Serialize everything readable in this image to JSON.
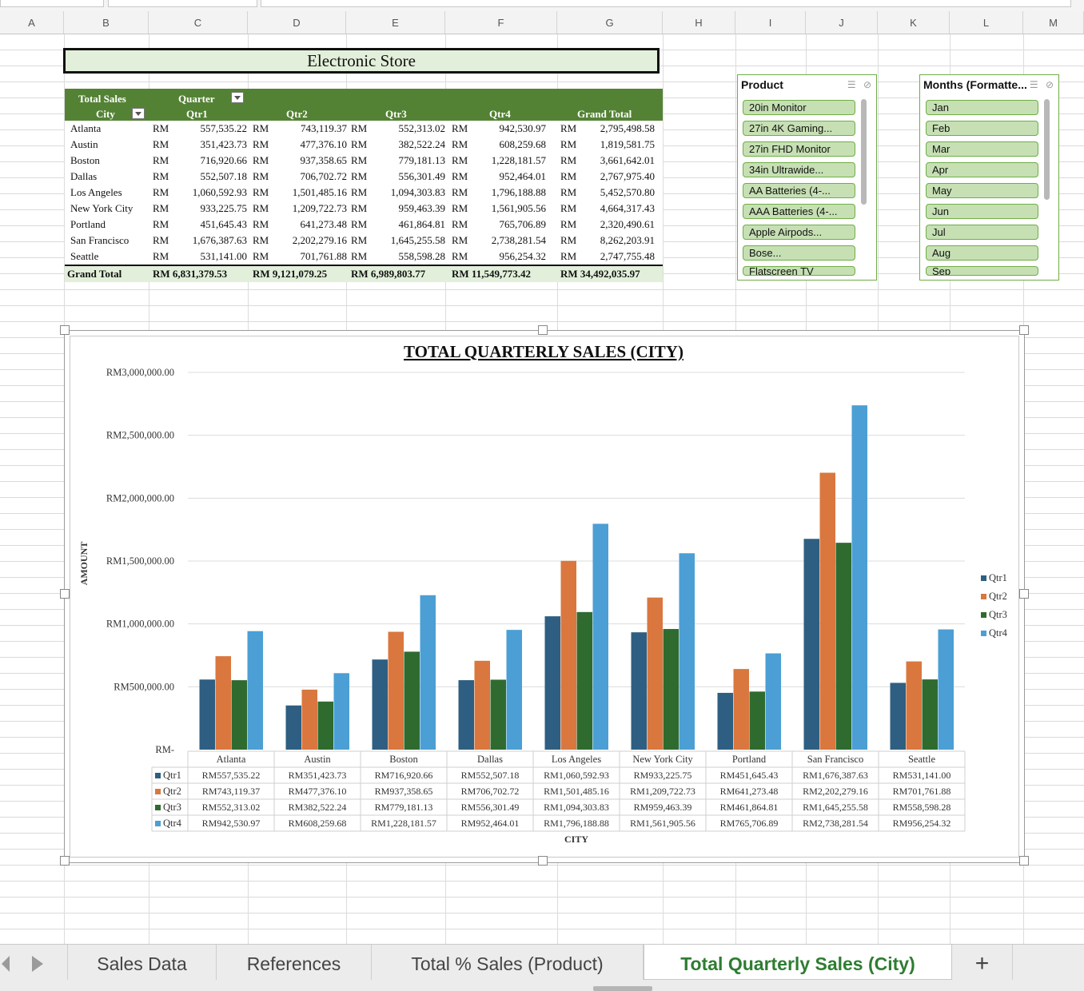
{
  "columns": [
    "A",
    "B",
    "C",
    "D",
    "E",
    "F",
    "G",
    "H",
    "I",
    "J",
    "K",
    "L",
    "M"
  ],
  "store_title": "Electronic Store",
  "pivot": {
    "header_total_sales": "Total Sales",
    "header_quarter": "Quarter",
    "header_city": "City",
    "quarters": [
      "Qtr1",
      "Qtr2",
      "Qtr3",
      "Qtr4"
    ],
    "grand_total_label": "Grand Total",
    "rows": [
      {
        "city": "Atlanta",
        "q1": "557,535.22",
        "q2": "743,119.37",
        "q3": "552,313.02",
        "q4": "942,530.97",
        "total": "2,795,498.58"
      },
      {
        "city": "Austin",
        "q1": "351,423.73",
        "q2": "477,376.10",
        "q3": "382,522.24",
        "q4": "608,259.68",
        "total": "1,819,581.75"
      },
      {
        "city": "Boston",
        "q1": "716,920.66",
        "q2": "937,358.65",
        "q3": "779,181.13",
        "q4": "1,228,181.57",
        "total": "3,661,642.01"
      },
      {
        "city": "Dallas",
        "q1": "552,507.18",
        "q2": "706,702.72",
        "q3": "556,301.49",
        "q4": "952,464.01",
        "total": "2,767,975.40"
      },
      {
        "city": "Los Angeles",
        "q1": "1,060,592.93",
        "q2": "1,501,485.16",
        "q3": "1,094,303.83",
        "q4": "1,796,188.88",
        "total": "5,452,570.80"
      },
      {
        "city": "New York City",
        "q1": "933,225.75",
        "q2": "1,209,722.73",
        "q3": "959,463.39",
        "q4": "1,561,905.56",
        "total": "4,664,317.43"
      },
      {
        "city": "Portland",
        "q1": "451,645.43",
        "q2": "641,273.48",
        "q3": "461,864.81",
        "q4": "765,706.89",
        "total": "2,320,490.61"
      },
      {
        "city": "San Francisco",
        "q1": "1,676,387.63",
        "q2": "2,202,279.16",
        "q3": "1,645,255.58",
        "q4": "2,738,281.54",
        "total": "8,262,203.91"
      },
      {
        "city": "Seattle",
        "q1": "531,141.00",
        "q2": "701,761.88",
        "q3": "558,598.28",
        "q4": "956,254.32",
        "total": "2,747,755.48"
      }
    ],
    "grand_total": {
      "q1": "RM 6,831,379.53",
      "q2": "RM 9,121,079.25",
      "q3": "RM 6,989,803.77",
      "q4": "RM 11,549,773.42",
      "total": "RM 34,492,035.97"
    }
  },
  "product_slicer": {
    "title": "Product",
    "items": [
      "20in Monitor",
      "27in 4K Gaming...",
      "27in FHD Monitor",
      "34in Ultrawide...",
      "AA Batteries (4-...",
      "AAA Batteries (4-...",
      "Apple Airpods...",
      "Bose...",
      "Flatscreen TV"
    ]
  },
  "months_slicer": {
    "title": "Months (Formatte...",
    "items": [
      "Jan",
      "Feb",
      "Mar",
      "Apr",
      "May",
      "Jun",
      "Jul",
      "Aug",
      "Sep"
    ]
  },
  "tabs": [
    "Sales Data",
    "References",
    "Total % Sales (Product)",
    "Total Quarterly Sales (City)",
    "+"
  ],
  "active_tab": "Total Quarterly Sales (City)",
  "colors": {
    "qtr1": "#2e5f82",
    "qtr2": "#d9773f",
    "qtr3": "#2f6b2f",
    "qtr4": "#4b9fd4",
    "pivot_header": "#548235",
    "pivot_light": "#e2efda",
    "slicer_item": "#c6e0b4",
    "active_tab": "#2e7d32"
  },
  "chart_data": {
    "type": "bar",
    "title": "TOTAL QUARTERLY SALES (CITY)",
    "xlabel": "CITY",
    "ylabel": "AMOUNT",
    "ylim": [
      0,
      3000000
    ],
    "yticks": [
      0,
      500000,
      1000000,
      1500000,
      2000000,
      2500000,
      3000000
    ],
    "ytick_labels": [
      "RM-",
      "RM500,000.00",
      "RM1,000,000.00",
      "RM1,500,000.00",
      "RM2,000,000.00",
      "RM2,500,000.00",
      "RM3,000,000.00"
    ],
    "legend_position": "right",
    "grid": true,
    "categories": [
      "Atlanta",
      "Austin",
      "Boston",
      "Dallas",
      "Los Angeles",
      "New York City",
      "Portland",
      "San Francisco",
      "Seattle"
    ],
    "series": [
      {
        "name": "Qtr1",
        "values": [
          557535.22,
          351423.73,
          716920.66,
          552507.18,
          1060592.93,
          933225.75,
          451645.43,
          1676387.63,
          531141.0
        ],
        "labels": [
          "RM557,535.22",
          "RM351,423.73",
          "RM716,920.66",
          "RM552,507.18",
          "RM1,060,592.93",
          "RM933,225.75",
          "RM451,645.43",
          "RM1,676,387.63",
          "RM531,141.00"
        ]
      },
      {
        "name": "Qtr2",
        "values": [
          743119.37,
          477376.1,
          937358.65,
          706702.72,
          1501485.16,
          1209722.73,
          641273.48,
          2202279.16,
          701761.88
        ],
        "labels": [
          "RM743,119.37",
          "RM477,376.10",
          "RM937,358.65",
          "RM706,702.72",
          "RM1,501,485.16",
          "RM1,209,722.73",
          "RM641,273.48",
          "RM2,202,279.16",
          "RM701,761.88"
        ]
      },
      {
        "name": "Qtr3",
        "values": [
          552313.02,
          382522.24,
          779181.13,
          556301.49,
          1094303.83,
          959463.39,
          461864.81,
          1645255.58,
          558598.28
        ],
        "labels": [
          "RM552,313.02",
          "RM382,522.24",
          "RM779,181.13",
          "RM556,301.49",
          "RM1,094,303.83",
          "RM959,463.39",
          "RM461,864.81",
          "RM1,645,255.58",
          "RM558,598.28"
        ]
      },
      {
        "name": "Qtr4",
        "values": [
          942530.97,
          608259.68,
          1228181.57,
          952464.01,
          1796188.88,
          1561905.56,
          765706.89,
          2738281.54,
          956254.32
        ],
        "labels": [
          "RM942,530.97",
          "RM608,259.68",
          "RM1,228,181.57",
          "RM952,464.01",
          "RM1,796,188.88",
          "RM1,561,905.56",
          "RM765,706.89",
          "RM2,738,281.54",
          "RM956,254.32"
        ]
      }
    ]
  }
}
